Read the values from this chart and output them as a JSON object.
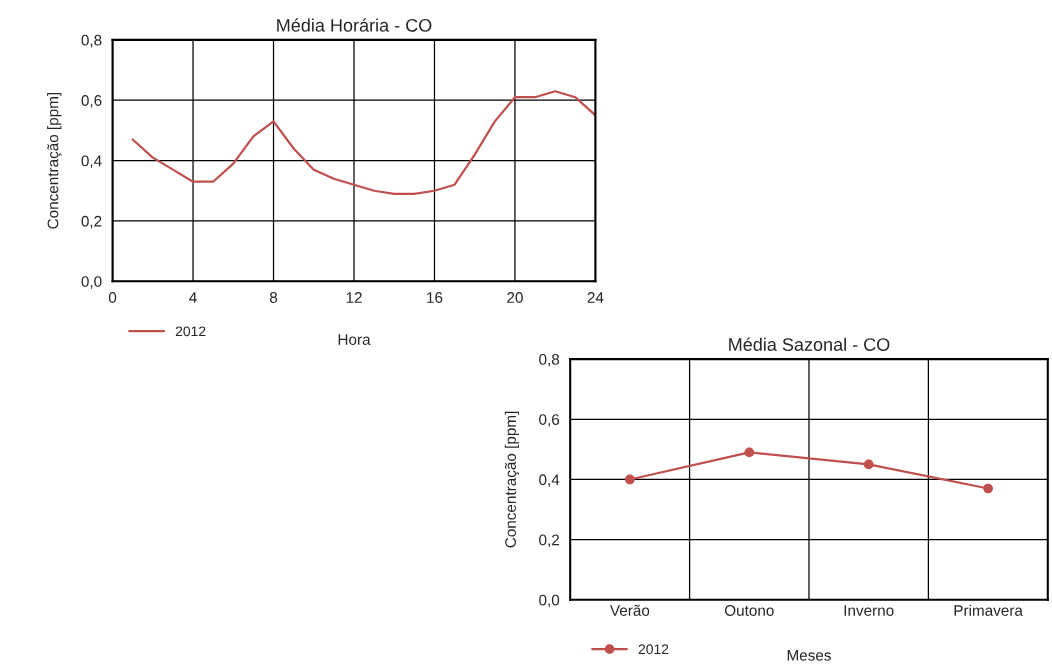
{
  "chart_data": [
    {
      "type": "line",
      "title": "Média Horária - CO",
      "xlabel": "Hora",
      "ylabel": "Concentração [ppm]",
      "x": [
        1,
        2,
        3,
        4,
        5,
        6,
        7,
        8,
        9,
        10,
        11,
        12,
        13,
        14,
        15,
        16,
        17,
        18,
        19,
        20,
        21,
        22,
        23,
        24
      ],
      "series": [
        {
          "name": "2012",
          "color": "#c0504d",
          "values": [
            0.47,
            0.41,
            0.37,
            0.33,
            0.33,
            0.39,
            0.48,
            0.53,
            0.44,
            0.37,
            0.34,
            0.32,
            0.3,
            0.29,
            0.29,
            0.3,
            0.32,
            0.42,
            0.53,
            0.61,
            0.61,
            0.63,
            0.61,
            0.55
          ]
        }
      ],
      "xlim": [
        0,
        24
      ],
      "xticks": [
        0,
        4,
        8,
        12,
        16,
        20,
        24
      ],
      "ylim": [
        0,
        0.8
      ],
      "yticks": [
        {
          "value": 0,
          "label": "0,0"
        },
        {
          "value": 0.2,
          "label": "0,2"
        },
        {
          "value": 0.4,
          "label": "0,4"
        },
        {
          "value": 0.6,
          "label": "0,6"
        },
        {
          "value": 0.8,
          "label": "0,8"
        }
      ],
      "grid": true,
      "legend": "bottom left",
      "marker": "none",
      "line_style": "solid"
    },
    {
      "type": "line",
      "title": "Média Sazonal - CO",
      "xlabel": "Meses",
      "ylabel": "Concentração [ppm]",
      "categories": [
        "Verão",
        "Outono",
        "Inverno",
        "Primavera"
      ],
      "series": [
        {
          "name": "2012",
          "color": "#c0504d",
          "values": [
            0.4,
            0.49,
            0.45,
            0.37
          ]
        }
      ],
      "ylim": [
        0,
        0.8
      ],
      "yticks": [
        {
          "value": 0,
          "label": "0,0"
        },
        {
          "value": 0.2,
          "label": "0,2"
        },
        {
          "value": 0.4,
          "label": "0,4"
        },
        {
          "value": 0.6,
          "label": "0,6"
        },
        {
          "value": 0.8,
          "label": "0,8"
        }
      ],
      "grid": true,
      "legend": "bottom left",
      "marker": "circle",
      "line_style": "solid"
    }
  ]
}
